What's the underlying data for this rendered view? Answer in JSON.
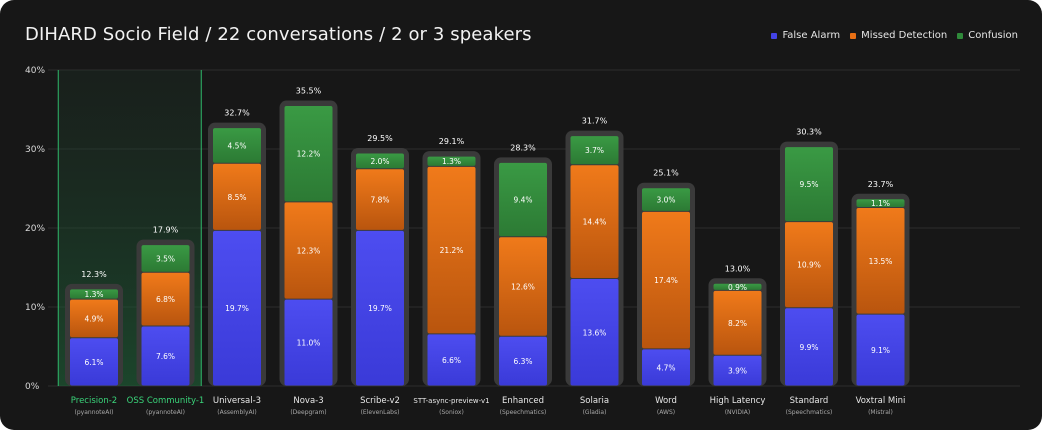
{
  "chart_data": {
    "type": "bar",
    "stacked": true,
    "title": "DIHARD Socio Field / 22 conversations / 2 or 3 speakers",
    "xlabel": "",
    "ylabel": "",
    "ylim": [
      0,
      40
    ],
    "y_ticks": [
      "0%",
      "10%",
      "20%",
      "30%",
      "40%"
    ],
    "y_tick_values": [
      0,
      10,
      20,
      30,
      40
    ],
    "grid": true,
    "legend_position": "top-right",
    "highlighted_categories": [
      0,
      1
    ],
    "categories": [
      {
        "name": "Precision-2",
        "vendor": "(pyannoteAI)"
      },
      {
        "name": "OSS Community-1",
        "vendor": "(pyannoteAI)"
      },
      {
        "name": "Universal-3",
        "vendor": "(AssemblyAI)"
      },
      {
        "name": "Nova-3",
        "vendor": "(Deepgram)"
      },
      {
        "name": "Scribe-v2",
        "vendor": "(ElevenLabs)"
      },
      {
        "name": "STT-async-preview-v1",
        "vendor": "(Soniox)"
      },
      {
        "name": "Enhanced",
        "vendor": "(Speechmatics)"
      },
      {
        "name": "Solaria",
        "vendor": "(Gladia)"
      },
      {
        "name": "Word",
        "vendor": "(AWS)"
      },
      {
        "name": "High Latency",
        "vendor": "(NVIDIA)"
      },
      {
        "name": "Standard",
        "vendor": "(Speechmatics)"
      },
      {
        "name": "Voxtral Mini",
        "vendor": "(Mistral)"
      }
    ],
    "series": [
      {
        "name": "False Alarm",
        "color": "#4343e6",
        "values": [
          6.1,
          7.6,
          19.7,
          11.0,
          19.7,
          6.6,
          6.3,
          13.6,
          4.7,
          3.9,
          9.9,
          9.1
        ]
      },
      {
        "name": "Missed Detection",
        "color": "#e86f14",
        "values": [
          4.9,
          6.8,
          8.5,
          12.3,
          7.8,
          21.2,
          12.6,
          14.4,
          17.4,
          8.2,
          10.9,
          13.5
        ]
      },
      {
        "name": "Confusion",
        "color": "#2f8a3a",
        "values": [
          1.3,
          3.5,
          4.5,
          12.2,
          2.0,
          1.3,
          9.4,
          3.7,
          3.0,
          0.9,
          9.5,
          1.1
        ]
      }
    ],
    "totals": [
      "12.3%",
      "17.9%",
      "32.7%",
      "35.5%",
      "29.5%",
      "29.1%",
      "28.3%",
      "31.7%",
      "25.1%",
      "13.0%",
      "30.3%",
      "23.7%"
    ],
    "segment_labels": [
      [
        "6.1%",
        "4.9%",
        "1.3%"
      ],
      [
        "7.6%",
        "6.8%",
        "3.5%"
      ],
      [
        "19.7%",
        "8.5%",
        "4.5%"
      ],
      [
        "11.0%",
        "12.3%",
        "12.2%"
      ],
      [
        "19.7%",
        "7.8%",
        "2.0%"
      ],
      [
        "6.6%",
        "21.2%",
        "1.3%"
      ],
      [
        "6.3%",
        "12.6%",
        "9.4%"
      ],
      [
        "13.6%",
        "14.4%",
        "3.7%"
      ],
      [
        "4.7%",
        "17.4%",
        "3.0%"
      ],
      [
        "3.9%",
        "8.2%",
        "0.9%"
      ],
      [
        "9.9%",
        "10.9%",
        "9.5%"
      ],
      [
        "9.1%",
        "13.5%",
        "1.1%"
      ]
    ]
  }
}
